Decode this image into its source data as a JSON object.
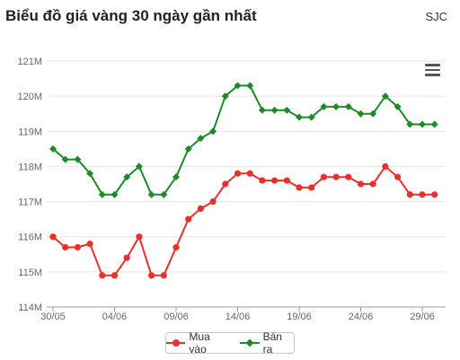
{
  "header": {
    "title": "Biểu đồ giá vàng 30 ngày gần nhất",
    "brand": "SJC"
  },
  "menu": {
    "icon": "hamburger-menu-icon"
  },
  "colors": {
    "buy": "#e8312a",
    "sell": "#1e8a28",
    "grid": "#e6e6e6",
    "axis": "#999999",
    "text": "#666666"
  },
  "chart_data": {
    "type": "line",
    "title": "Biểu đồ giá vàng 30 ngày gần nhất",
    "x_tick_labels": [
      "30/05",
      "04/06",
      "09/06",
      "14/06",
      "19/06",
      "24/06",
      "29/06"
    ],
    "y_tick_labels": [
      "114M",
      "115M",
      "116M",
      "117M",
      "118M",
      "119M",
      "120M",
      "121M"
    ],
    "ylim": [
      114,
      121
    ],
    "y_unit": "M",
    "grid": true,
    "legend_position": "bottom-center",
    "series": [
      {
        "name": "Mua vào",
        "color": "#e8312a",
        "marker": "circle",
        "values": [
          116.0,
          115.7,
          115.7,
          115.8,
          114.9,
          114.9,
          115.4,
          116.0,
          114.9,
          114.9,
          115.7,
          116.5,
          116.8,
          117.0,
          117.5,
          117.8,
          117.8,
          117.6,
          117.6,
          117.6,
          117.4,
          117.4,
          117.7,
          117.7,
          117.7,
          117.5,
          117.5,
          118.0,
          117.7,
          117.2,
          117.2,
          117.2
        ]
      },
      {
        "name": "Bán ra",
        "color": "#1e8a28",
        "marker": "diamond",
        "values": [
          118.5,
          118.2,
          118.2,
          117.8,
          117.2,
          117.2,
          117.7,
          118.0,
          117.2,
          117.2,
          117.7,
          118.5,
          118.8,
          119.0,
          120.0,
          120.3,
          120.3,
          119.6,
          119.6,
          119.6,
          119.4,
          119.4,
          119.7,
          119.7,
          119.7,
          119.5,
          119.5,
          120.0,
          119.7,
          119.2,
          119.2,
          119.2
        ]
      }
    ]
  }
}
